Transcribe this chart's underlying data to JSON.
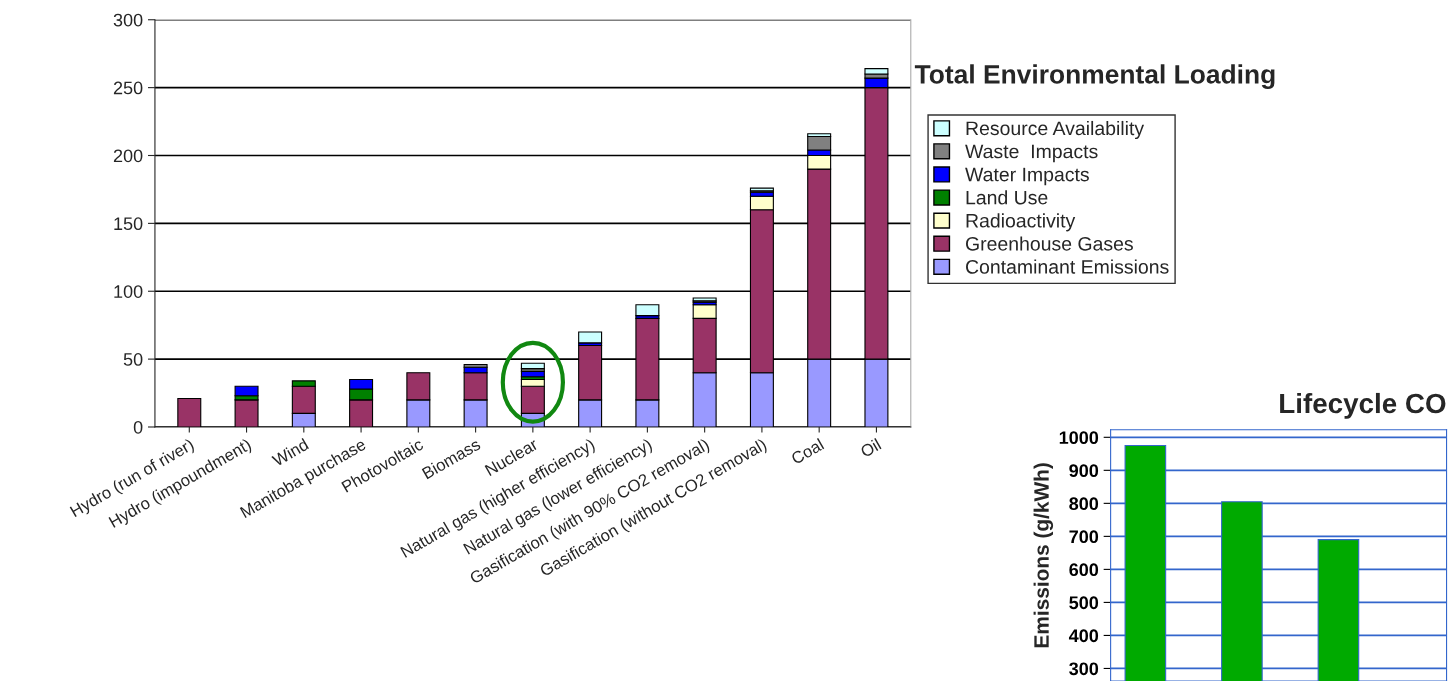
{
  "chart_data": [
    {
      "type": "bar",
      "title": "Total Environmental Loading",
      "stacked": true,
      "legend": "right",
      "grid": "y",
      "categories": [
        "Hydro (run of river)",
        "Hydro (impoundment)",
        "Wind",
        "Manitoba purchase",
        "Photovoltaic",
        "Biomass",
        "Nuclear",
        "Natural gas (higher efficiency)",
        "Natural gas (lower efficiency)",
        "Gasification (with 90% CO2 removal)",
        "Gasification (without CO2 removal)",
        "Coal",
        "Oil"
      ],
      "ylim": [
        0,
        300
      ],
      "yticks": [
        0,
        50,
        100,
        150,
        200,
        250,
        300
      ],
      "series": [
        {
          "name": "Contaminant Emissions",
          "color": "#9999ff",
          "values": [
            0,
            0,
            10,
            0,
            20,
            20,
            10,
            20,
            20,
            40,
            40,
            50,
            50
          ]
        },
        {
          "name": "Greenhouse Gases",
          "color": "#993366",
          "values": [
            21,
            20,
            20,
            20,
            20,
            20,
            20,
            40,
            60,
            40,
            120,
            140,
            200
          ]
        },
        {
          "name": "Radioactivity",
          "color": "#ffffcc",
          "values": [
            0,
            0,
            0,
            0,
            0,
            0,
            5,
            0,
            0,
            10,
            10,
            10,
            0
          ]
        },
        {
          "name": "Land Use",
          "color": "#008000",
          "values": [
            0,
            3,
            4,
            8,
            0,
            null,
            2,
            0,
            null,
            0,
            0,
            0,
            0
          ]
        },
        {
          "name": "Water Impacts",
          "color": "#0000ff",
          "values": [
            0,
            7,
            0,
            7,
            0,
            4,
            4,
            2,
            2,
            2,
            3,
            4,
            7
          ]
        },
        {
          "name": "Waste  Impacts",
          "color": "#808080",
          "values": [
            0,
            0,
            0,
            0,
            0,
            2,
            2,
            null,
            0,
            1,
            1,
            10,
            3
          ]
        },
        {
          "name": "Resource Availability",
          "color": "#ccffff",
          "values": [
            0,
            0,
            0,
            0,
            0,
            0,
            4,
            8,
            8,
            2,
            2,
            2,
            4
          ]
        }
      ]
    },
    {
      "type": "bar",
      "title": "Lifecycle CO",
      "ylabel": "Emissions (g/kWh)",
      "grid": "y",
      "tick_labels": "y",
      "categories": [
        null,
        null,
        null
      ],
      "ylim": [
        262,
        1023
      ],
      "yticks": [
        300,
        400,
        500,
        600,
        700,
        800,
        900,
        1000
      ],
      "series": [
        {
          "color": "#00aa00",
          "values": [
            975,
            805,
            690
          ]
        }
      ]
    }
  ]
}
